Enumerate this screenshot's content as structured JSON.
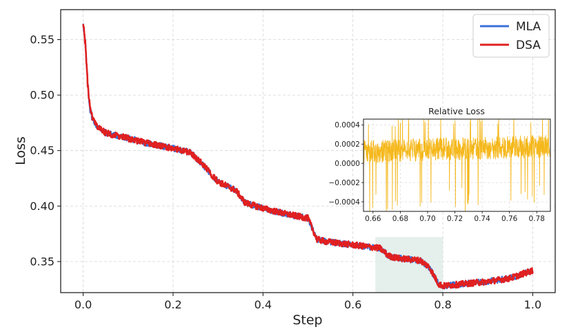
{
  "chart_data": [
    {
      "type": "line",
      "title": "",
      "xlabel": "Step",
      "ylabel": "Loss",
      "xlim": [
        -0.05,
        1.05
      ],
      "ylim": [
        0.322,
        0.577
      ],
      "grid": true,
      "legend_position": "top-right",
      "x_ticks": [
        0.0,
        0.2,
        0.4,
        0.6,
        0.8,
        1.0
      ],
      "x_tick_labels": [
        "0.0",
        "0.2",
        "0.4",
        "0.6",
        "0.8",
        "1.0"
      ],
      "y_ticks": [
        0.35,
        0.4,
        0.45,
        0.5,
        0.55
      ],
      "y_tick_labels": [
        "0.35",
        "0.40",
        "0.45",
        "0.50",
        "0.55"
      ],
      "series": [
        {
          "name": "MLA",
          "color": "#3a6fd8",
          "x": [
            0.0,
            0.005,
            0.01,
            0.015,
            0.02,
            0.03,
            0.05,
            0.1,
            0.15,
            0.2,
            0.24,
            0.26,
            0.3,
            0.34,
            0.36,
            0.4,
            0.45,
            0.5,
            0.52,
            0.54,
            0.6,
            0.66,
            0.68,
            0.7,
            0.75,
            0.77,
            0.79,
            0.8,
            0.85,
            0.9,
            0.95,
            1.0
          ],
          "y": [
            0.566,
            0.545,
            0.51,
            0.488,
            0.48,
            0.472,
            0.466,
            0.461,
            0.456,
            0.452,
            0.448,
            0.44,
            0.422,
            0.414,
            0.403,
            0.398,
            0.393,
            0.389,
            0.37,
            0.368,
            0.365,
            0.362,
            0.355,
            0.353,
            0.351,
            0.345,
            0.33,
            0.328,
            0.33,
            0.332,
            0.335,
            0.342
          ]
        },
        {
          "name": "DSA",
          "color": "#e02020",
          "x": [
            0.0,
            0.005,
            0.01,
            0.015,
            0.02,
            0.03,
            0.05,
            0.1,
            0.15,
            0.2,
            0.24,
            0.26,
            0.3,
            0.34,
            0.36,
            0.4,
            0.45,
            0.5,
            0.52,
            0.54,
            0.6,
            0.66,
            0.68,
            0.7,
            0.75,
            0.77,
            0.79,
            0.8,
            0.85,
            0.9,
            0.95,
            1.0
          ],
          "y": [
            0.566,
            0.545,
            0.51,
            0.488,
            0.48,
            0.472,
            0.466,
            0.461,
            0.456,
            0.452,
            0.448,
            0.44,
            0.422,
            0.414,
            0.403,
            0.398,
            0.393,
            0.389,
            0.37,
            0.368,
            0.365,
            0.362,
            0.355,
            0.353,
            0.351,
            0.345,
            0.33,
            0.328,
            0.33,
            0.332,
            0.335,
            0.342
          ]
        }
      ],
      "highlight_region": {
        "x": [
          0.65,
          0.8
        ],
        "y": [
          0.3225,
          0.372
        ],
        "color": "#dce9e6"
      }
    },
    {
      "type": "line",
      "title": "Relative Loss",
      "xlim": [
        0.653,
        0.79
      ],
      "ylim": [
        -0.0005,
        0.00046
      ],
      "grid": true,
      "x_ticks": [
        0.66,
        0.68,
        0.7,
        0.72,
        0.74,
        0.76,
        0.78
      ],
      "x_tick_labels": [
        "0.66",
        "0.68",
        "0.70",
        "0.72",
        "0.74",
        "0.76",
        "0.78"
      ],
      "y_ticks": [
        -0.0004,
        -0.0002,
        0.0,
        0.0002,
        0.0004
      ],
      "y_tick_labels": [
        "−0.0004",
        "−0.0002",
        "0.0000",
        "0.0002",
        "0.0004"
      ],
      "series": [
        {
          "color": "#f5b81c",
          "x": [
            0.653,
            0.67,
            0.69,
            0.71,
            0.73,
            0.75,
            0.77,
            0.79
          ],
          "y": [
            0.00012,
            0.00013,
            0.00014,
            0.00015,
            0.00015,
            0.00016,
            0.00017,
            0.00018
          ],
          "noise_amplitude": 0.00012
        }
      ]
    }
  ]
}
